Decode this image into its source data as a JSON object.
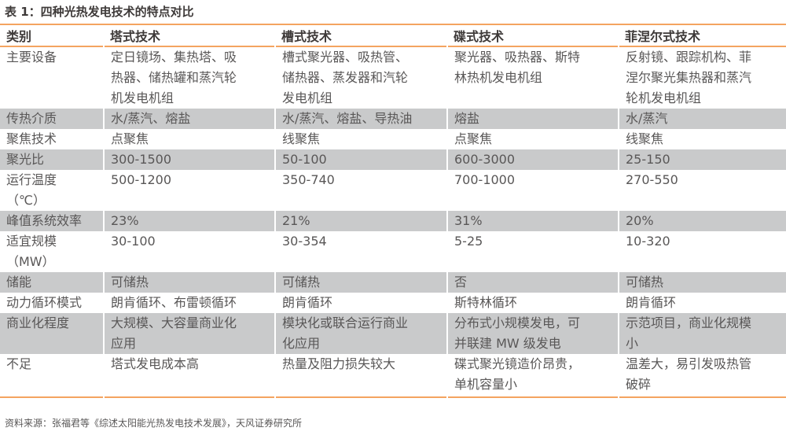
{
  "title": "表 1：四种光热发电技术的特点对比",
  "headers": [
    "类别",
    "塔式技术",
    "槽式技术",
    "碟式技术",
    "菲涅尔式技术"
  ],
  "rows": [
    {
      "cells": [
        "主要设备",
        "定日镜场、集热塔、吸\n热器、储热罐和蒸汽轮\n机发电机组",
        "槽式聚光器、吸热管、\n储热器、蒸发器和汽轮\n发电机组",
        "聚光器、吸热器、斯特\n林热机发电机组",
        "反射镜、跟踪机构、菲\n涅尔聚光集热器和蒸汽\n轮机发电机组"
      ],
      "shaded": false
    },
    {
      "cells": [
        "传热介质",
        "水/蒸汽、熔盐",
        "水/蒸汽、熔盐、导热油",
        "熔盐",
        "水/蒸汽"
      ],
      "shaded": true
    },
    {
      "cells": [
        "聚焦技术",
        "点聚焦",
        "线聚焦",
        "点聚焦",
        "线聚焦"
      ],
      "shaded": false
    },
    {
      "cells": [
        "聚光比",
        "300-1500",
        "50-100",
        "600-3000",
        "25-150"
      ],
      "shaded": true
    },
    {
      "cells": [
        "运行温度\n（℃）",
        "500-1200",
        "350-740",
        "700-1000",
        "270-550"
      ],
      "shaded": false
    },
    {
      "cells": [
        "峰值系统效率",
        "23%",
        "21%",
        "31%",
        "20%"
      ],
      "shaded": true
    },
    {
      "cells": [
        "适宜规模\n（MW）",
        "30-100",
        "30-354",
        "5-25",
        "10-320"
      ],
      "shaded": false
    },
    {
      "cells": [
        "储能",
        "可储热",
        "可储热",
        "否",
        "可储热"
      ],
      "shaded": true
    },
    {
      "cells": [
        "动力循环模式",
        "朗肯循环、布雷顿循环",
        "朗肯循环",
        "斯特林循环",
        "朗肯循环"
      ],
      "shaded": false
    },
    {
      "cells": [
        "商业化程度",
        "大规模、大容量商业化\n应用",
        "模块化或联合运行商业\n化应用",
        "分布式小规模发电，可\n并联建 MW 级发电",
        "示范项目，商业化规模\n小"
      ],
      "shaded": true
    },
    {
      "cells": [
        "不足",
        "塔式发电成本高",
        "热量及阻力损失较大",
        "碟式聚光镜造价昂贵，\n单机容量小",
        "温差大，易引发吸热管\n破碎"
      ],
      "shaded": false
    }
  ],
  "source": "资料来源：张福君等《综述太阳能光热发电技术发展》，天风证券研究所",
  "colors": {
    "accent_line": "#f4a460",
    "shade": "#c9cacb"
  }
}
